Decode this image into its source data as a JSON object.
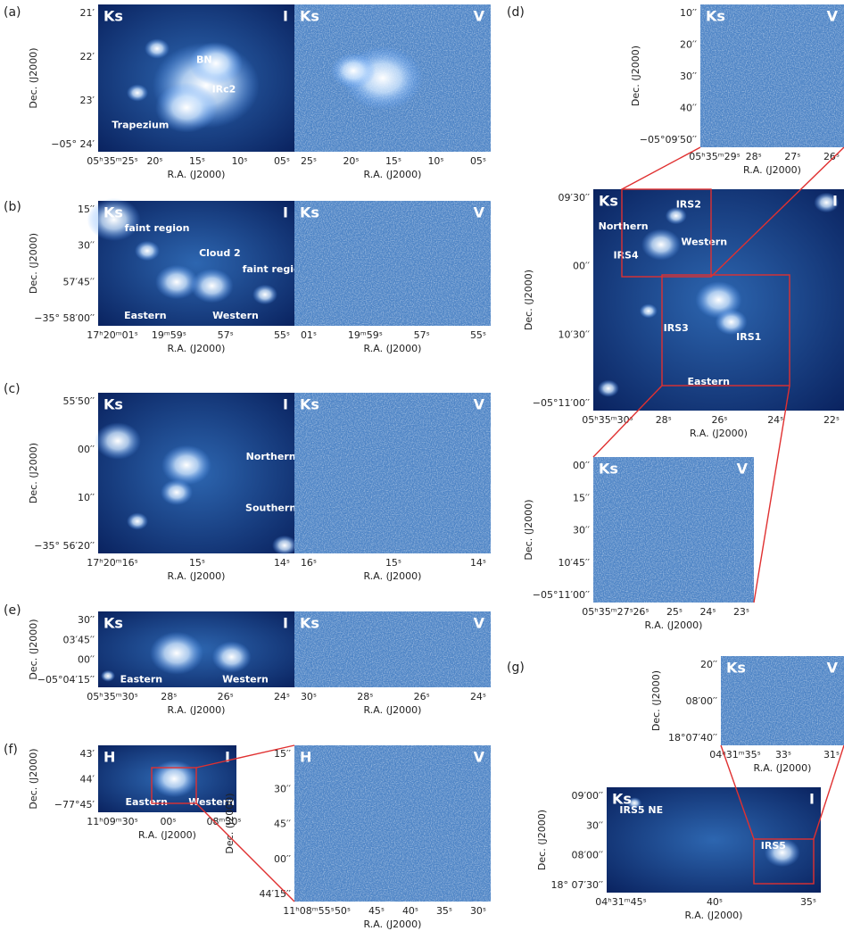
{
  "panels": [
    {
      "label": "(a)",
      "images": [
        {
          "band": "Ks",
          "mode": "I",
          "annotations": [
            "BN",
            "IRc2",
            "Trapezium"
          ],
          "y_label": "Dec. (J2000)",
          "yticks": [
            "21′",
            "22′",
            "23′",
            "−05° 24′"
          ],
          "xticks": [
            "05ʰ35ᵐ25ˢ",
            "20ˢ",
            "15ˢ",
            "10ˢ",
            "05ˢ"
          ],
          "x_label": "R.A. (J2000)"
        },
        {
          "band": "Ks",
          "mode": "V",
          "xticks": [
            "25ˢ",
            "20ˢ",
            "15ˢ",
            "10ˢ",
            "05ˢ"
          ],
          "x_label": "R.A. (J2000)"
        }
      ]
    },
    {
      "label": "(b)",
      "images": [
        {
          "band": "Ks",
          "mode": "I",
          "annotations": [
            "faint region",
            "Cloud 2",
            "faint region",
            "Eastern",
            "Western"
          ],
          "y_label": "Dec. (J2000)",
          "yticks": [
            "15′′",
            "30′′",
            "57′45′′",
            "−35° 58′00′′"
          ],
          "xticks": [
            "17ʰ20ᵐ01ˢ",
            "19ᵐ59ˢ",
            "57ˢ",
            "55ˢ"
          ],
          "x_label": "R.A. (J2000)"
        },
        {
          "band": "Ks",
          "mode": "V",
          "xticks": [
            "01ˢ",
            "19ᵐ59ˢ",
            "57ˢ",
            "55ˢ"
          ],
          "x_label": "R.A. (J2000)"
        }
      ]
    },
    {
      "label": "(c)",
      "images": [
        {
          "band": "Ks",
          "mode": "I",
          "annotations": [
            "Northern",
            "Southern"
          ],
          "y_label": "Dec. (J2000)",
          "yticks": [
            "55′50′′",
            "00′′",
            "10′′",
            "−35° 56′20′′"
          ],
          "xticks": [
            "17ʰ20ᵐ16ˢ",
            "15ˢ",
            "14ˢ"
          ],
          "x_label": "R.A. (J2000)"
        },
        {
          "band": "Ks",
          "mode": "V",
          "xticks": [
            "16ˢ",
            "15ˢ",
            "14ˢ"
          ],
          "x_label": "R.A. (J2000)"
        }
      ]
    },
    {
      "label": "(e)",
      "images": [
        {
          "band": "Ks",
          "mode": "I",
          "annotations": [
            "Eastern",
            "Western"
          ],
          "y_label": "Dec. (J2000)",
          "yticks": [
            "30′′",
            "03′45′′",
            "00′′",
            "−05°04′15′′"
          ],
          "xticks": [
            "05ʰ35ᵐ30ˢ",
            "28ˢ",
            "26ˢ",
            "24ˢ"
          ],
          "x_label": "R.A. (J2000)"
        },
        {
          "band": "Ks",
          "mode": "V",
          "xticks": [
            "30ˢ",
            "28ˢ",
            "26ˢ",
            "24ˢ"
          ],
          "x_label": "R.A. (J2000)"
        }
      ]
    },
    {
      "label": "(f)",
      "images": [
        {
          "band": "H",
          "mode": "I",
          "annotations": [
            "Eastern",
            "Western"
          ],
          "y_label": "Dec. (J2000)",
          "yticks": [
            "43′",
            "44′",
            "−77°45′"
          ],
          "xticks": [
            "11ʰ09ᵐ30ˢ",
            "00ˢ",
            "08ᵐ30ˢ"
          ],
          "x_label": "R.A. (J2000)"
        },
        {
          "band": "H",
          "mode": "V",
          "y_label": "Dec. (J2000)",
          "yticks": [
            "15′′",
            "30′′",
            "45′′",
            "00′′",
            "44′15′′"
          ],
          "xticks": [
            "11ʰ08ᵐ55ˢ",
            "50ˢ",
            "45ˢ",
            "40ˢ",
            "35ˢ",
            "30ˢ"
          ],
          "x_label": "R.A. (J2000)"
        }
      ]
    },
    {
      "label": "(d)",
      "images": [
        {
          "band": "Ks",
          "mode": "V",
          "y_label": "Dec. (J2000)",
          "yticks": [
            "10′′",
            "20′′",
            "30′′",
            "40′′",
            "−05°09′50′′"
          ],
          "xticks": [
            "05ʰ35ᵐ29ˢ",
            "28ˢ",
            "27ˢ",
            "26ˢ"
          ],
          "x_label": "R.A. (J2000)"
        },
        {
          "band": "Ks",
          "mode": "I",
          "annotations": [
            "IRS2",
            "Northern",
            "Western",
            "IRS4",
            "IRS3",
            "IRS1",
            "Eastern"
          ],
          "y_label": "Dec. (J2000)",
          "yticks": [
            "09′30′′",
            "00′′",
            "10′30′′",
            "−05°11′00′′"
          ],
          "xticks": [
            "05ʰ35ᵐ30ˢ",
            "28ˢ",
            "26ˢ",
            "24ˢ",
            "22ˢ"
          ],
          "x_label": "R.A. (J2000)"
        },
        {
          "band": "Ks",
          "mode": "V",
          "y_label": "Dec. (J2000)",
          "yticks": [
            "00′′",
            "15′′",
            "30′′",
            "10′45′′",
            "−05°11′00′′"
          ],
          "xticks": [
            "05ʰ35ᵐ27ˢ",
            "26ˢ",
            "25ˢ",
            "24ˢ",
            "23ˢ"
          ],
          "x_label": "R.A. (J2000)"
        }
      ]
    },
    {
      "label": "(g)",
      "images": [
        {
          "band": "Ks",
          "mode": "V",
          "y_label": "Dec. (J2000)",
          "yticks": [
            "20′′",
            "08′00′′",
            "18°07′40′′"
          ],
          "xticks": [
            "04ʰ31ᵐ35ˢ",
            "33ˢ",
            "31ˢ"
          ],
          "x_label": "R.A. (J2000)"
        },
        {
          "band": "Ks",
          "mode": "I",
          "annotations": [
            "IRS5 NE",
            "IRS5"
          ],
          "y_label": "Dec. (J2000)",
          "yticks": [
            "09′00′′",
            "30′′",
            "08′00′′",
            "18° 07′30′′"
          ],
          "xticks": [
            "04ʰ31ᵐ45ˢ",
            "40ˢ",
            "35ˢ"
          ],
          "x_label": "R.A. (J2000)"
        }
      ]
    }
  ]
}
